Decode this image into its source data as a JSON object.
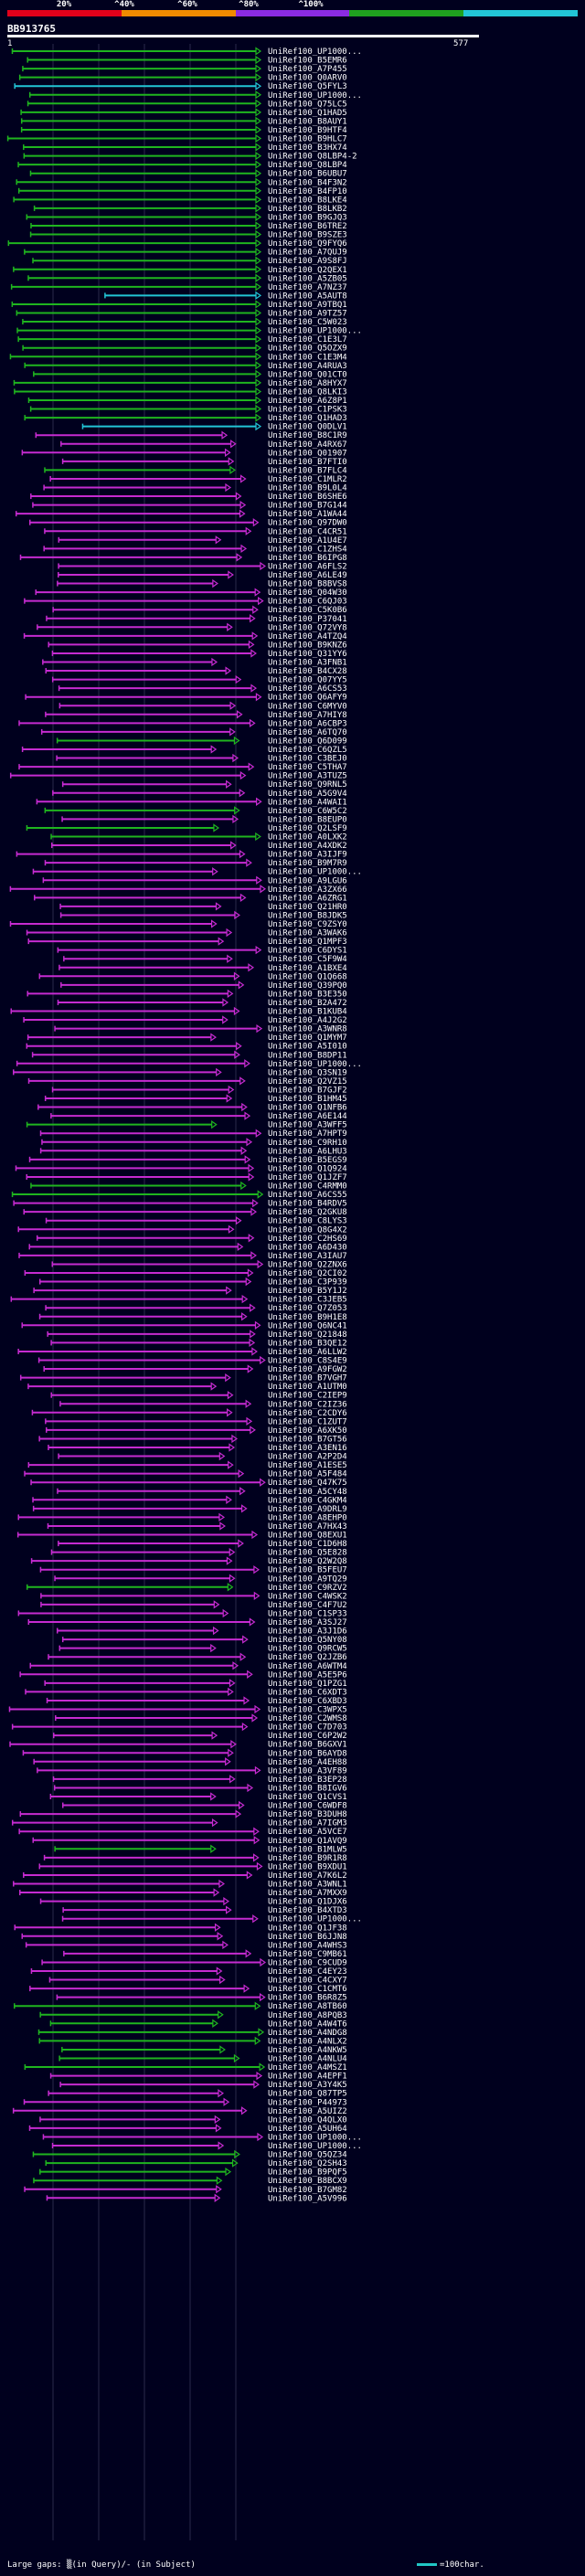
{
  "scale": {
    "labels": [
      "20%",
      "^40%",
      "^60%",
      "^80%",
      "^100%"
    ],
    "colors": [
      "#e2001a",
      "#f08a00",
      "#8a2be2",
      "#1fa11f",
      "#22c5d6"
    ]
  },
  "query": {
    "id": "BB913765",
    "start": "1",
    "end": "577"
  },
  "hits": [
    {
      "label": "UniRef100_UP1000...",
      "color": "green"
    },
    {
      "label": "UniRef100_B5EMR6",
      "color": "green"
    },
    {
      "label": "UniRef100_A7P455",
      "color": "green"
    },
    {
      "label": "UniRef100_Q0ARV0",
      "color": "green"
    },
    {
      "label": "UniRef100_Q5FYL3",
      "color": "cyan"
    },
    {
      "label": "UniRef100_UP1000...",
      "color": "green"
    },
    {
      "label": "UniRef100_Q75LC5",
      "color": "green"
    },
    {
      "label": "UniRef100_Q1HAD5",
      "color": "green"
    },
    {
      "label": "UniRef100_B8AUY1",
      "color": "green"
    },
    {
      "label": "UniRef100_B9HTF4",
      "color": "green"
    },
    {
      "label": "UniRef100_B9HLC7",
      "color": "green"
    },
    {
      "label": "UniRef100_B3HX74",
      "color": "green"
    },
    {
      "label": "UniRef100_Q8LBP4-2",
      "color": "green"
    },
    {
      "label": "UniRef100_Q8LBP4",
      "color": "green"
    },
    {
      "label": "UniRef100_B6UBU7",
      "color": "green"
    },
    {
      "label": "UniRef100_B4F3N2",
      "color": "green"
    },
    {
      "label": "UniRef100_B4FP10",
      "color": "green"
    },
    {
      "label": "UniRef100_B8LKE4",
      "color": "green"
    },
    {
      "label": "UniRef100_B8LKB2",
      "color": "green"
    },
    {
      "label": "UniRef100_B9GJQ3",
      "color": "green"
    },
    {
      "label": "UniRef100_B6TRE2",
      "color": "green"
    },
    {
      "label": "UniRef100_B9SZE3",
      "color": "green"
    },
    {
      "label": "UniRef100_Q9FYQ6",
      "color": "green"
    },
    {
      "label": "UniRef100_A7QUJ9",
      "color": "green"
    },
    {
      "label": "UniRef100_A9S8FJ",
      "color": "green"
    },
    {
      "label": "UniRef100_Q2QEX1",
      "color": "green"
    },
    {
      "label": "UniRef100_A5ZB05",
      "color": "green"
    },
    {
      "label": "UniRef100_A7NZ37",
      "color": "green"
    },
    {
      "label": "UniRef100_A5AUT8",
      "color": "cyan"
    },
    {
      "label": "UniRef100_A9TBQ1",
      "color": "green"
    },
    {
      "label": "UniRef100_A9TZ57",
      "color": "green"
    },
    {
      "label": "UniRef100_C5W023",
      "color": "green"
    },
    {
      "label": "UniRef100_UP1000...",
      "color": "green"
    },
    {
      "label": "UniRef100_C1E3L7",
      "color": "green"
    },
    {
      "label": "UniRef100_Q5OZX9",
      "color": "green"
    },
    {
      "label": "UniRef100_C1E3M4",
      "color": "green"
    },
    {
      "label": "UniRef100_A4RUA3",
      "color": "green"
    },
    {
      "label": "UniRef100_Q01CT0",
      "color": "green"
    },
    {
      "label": "UniRef100_A8HYX7",
      "color": "green"
    },
    {
      "label": "UniRef100_Q8LKI3",
      "color": "green"
    },
    {
      "label": "UniRef100_A6Z8P1",
      "color": "green"
    },
    {
      "label": "UniRef100_C1PSK3",
      "color": "green"
    },
    {
      "label": "UniRef100_Q1HAD3",
      "color": "green"
    },
    {
      "label": "UniRef100_Q0DLV1",
      "color": "cyan"
    },
    {
      "label": "UniRef100_B8C1R9",
      "color": "magenta"
    },
    {
      "label": "UniRef100_A4RX67",
      "color": "magenta"
    },
    {
      "label": "UniRef100_Q01907",
      "color": "magenta"
    },
    {
      "label": "UniRef100_B7FTI0",
      "color": "magenta"
    },
    {
      "label": "UniRef100_B7FLC4",
      "color": "green"
    },
    {
      "label": "UniRef100_C1MLR2",
      "color": "magenta"
    },
    {
      "label": "UniRef100_B9L0L4",
      "color": "magenta"
    },
    {
      "label": "UniRef100_B6SHE6",
      "color": "magenta"
    },
    {
      "label": "UniRef100_B7G144",
      "color": "magenta"
    },
    {
      "label": "UniRef100_A1WA44",
      "color": "magenta"
    },
    {
      "label": "UniRef100_Q97DW0",
      "color": "magenta"
    },
    {
      "label": "UniRef100_C4CR51",
      "color": "magenta"
    },
    {
      "label": "UniRef100_A1U4E7",
      "color": "magenta"
    },
    {
      "label": "UniRef100_C1ZHS4",
      "color": "magenta"
    },
    {
      "label": "UniRef100_B6IPG8",
      "color": "magenta"
    },
    {
      "label": "UniRef100_A6FLS2",
      "color": "magenta"
    },
    {
      "label": "UniRef100_A6LE49",
      "color": "magenta"
    },
    {
      "label": "UniRef100_B8BVS8",
      "color": "magenta"
    },
    {
      "label": "UniRef100_Q04W30",
      "color": "magenta"
    },
    {
      "label": "UniRef100_C6QJ03",
      "color": "magenta"
    },
    {
      "label": "UniRef100_C5K0B6",
      "color": "magenta"
    },
    {
      "label": "UniRef100_P37041",
      "color": "magenta"
    },
    {
      "label": "UniRef100_Q72VY8",
      "color": "magenta"
    },
    {
      "label": "UniRef100_A4TZQ4",
      "color": "magenta"
    },
    {
      "label": "UniRef100_B9KNZ6",
      "color": "magenta"
    },
    {
      "label": "UniRef100_Q31YY6",
      "color": "magenta"
    },
    {
      "label": "UniRef100_A3FNB1",
      "color": "magenta"
    },
    {
      "label": "UniRef100_B4CX28",
      "color": "magenta"
    },
    {
      "label": "UniRef100_Q07YY5",
      "color": "magenta"
    },
    {
      "label": "UniRef100_A6CS53",
      "color": "magenta"
    },
    {
      "label": "UniRef100_Q6AFY9",
      "color": "magenta"
    },
    {
      "label": "UniRef100_C6MYV0",
      "color": "magenta"
    },
    {
      "label": "UniRef100_A7HIY8",
      "color": "magenta"
    },
    {
      "label": "UniRef100_A6CBP3",
      "color": "magenta"
    },
    {
      "label": "UniRef100_A6TQ70",
      "color": "magenta"
    },
    {
      "label": "UniRef100_Q6D099",
      "color": "green"
    },
    {
      "label": "UniRef100_C6QZL5",
      "color": "magenta"
    },
    {
      "label": "UniRef100_C3BEJ0",
      "color": "magenta"
    },
    {
      "label": "UniRef100_C5THA7",
      "color": "magenta"
    },
    {
      "label": "UniRef100_A3TUZ5",
      "color": "magenta"
    },
    {
      "label": "UniRef100_Q9RNL5",
      "color": "magenta"
    },
    {
      "label": "UniRef100_A5G9V4",
      "color": "magenta"
    },
    {
      "label": "UniRef100_A4WAI1",
      "color": "magenta"
    },
    {
      "label": "UniRef100_C6W5C2",
      "color": "green"
    },
    {
      "label": "UniRef100_B8EUP0",
      "color": "magenta"
    },
    {
      "label": "UniRef100_Q2LSF9",
      "color": "green"
    },
    {
      "label": "UniRef100_A0LXK2",
      "color": "green"
    },
    {
      "label": "UniRef100_A4XDK2",
      "color": "magenta"
    },
    {
      "label": "UniRef100_A3IJF9",
      "color": "magenta"
    },
    {
      "label": "UniRef100_B9M7R9",
      "color": "magenta"
    },
    {
      "label": "UniRef100_UP1000...",
      "color": "magenta"
    },
    {
      "label": "UniRef100_A9LGU6",
      "color": "magenta"
    },
    {
      "label": "UniRef100_A3ZX66",
      "color": "magenta"
    },
    {
      "label": "UniRef100_A6ZRG1",
      "color": "magenta"
    },
    {
      "label": "UniRef100_Q21HR0",
      "color": "magenta"
    },
    {
      "label": "UniRef100_B8JDK5",
      "color": "magenta"
    },
    {
      "label": "UniRef100_C9ZSY0",
      "color": "magenta"
    },
    {
      "label": "UniRef100_A3WAK6",
      "color": "magenta"
    },
    {
      "label": "UniRef100_Q1MPF3",
      "color": "magenta"
    },
    {
      "label": "UniRef100_C6DYS1",
      "color": "magenta"
    },
    {
      "label": "UniRef100_C5F9W4",
      "color": "magenta"
    },
    {
      "label": "UniRef100_A1BXE4",
      "color": "magenta"
    },
    {
      "label": "UniRef100_Q1Q668",
      "color": "magenta"
    },
    {
      "label": "UniRef100_Q39PQ0",
      "color": "magenta"
    },
    {
      "label": "UniRef100_B3E350",
      "color": "magenta"
    },
    {
      "label": "UniRef100_B2A472",
      "color": "magenta"
    },
    {
      "label": "UniRef100_B1KUB4",
      "color": "magenta"
    },
    {
      "label": "UniRef100_A4J2G2",
      "color": "magenta"
    },
    {
      "label": "UniRef100_A3WNR8",
      "color": "magenta"
    },
    {
      "label": "UniRef100_Q1MYM7",
      "color": "magenta"
    },
    {
      "label": "UniRef100_A5I010",
      "color": "magenta"
    },
    {
      "label": "UniRef100_B8DP11",
      "color": "magenta"
    },
    {
      "label": "UniRef100_UP1000...",
      "color": "magenta"
    },
    {
      "label": "UniRef100_Q3SN19",
      "color": "magenta"
    },
    {
      "label": "UniRef100_Q2VZ15",
      "color": "magenta"
    },
    {
      "label": "UniRef100_B7GJF2",
      "color": "magenta"
    },
    {
      "label": "UniRef100_B1HM45",
      "color": "magenta"
    },
    {
      "label": "UniRef100_Q1NFB6",
      "color": "magenta"
    },
    {
      "label": "UniRef100_A6E144",
      "color": "magenta"
    },
    {
      "label": "UniRef100_A3WFF5",
      "color": "green"
    },
    {
      "label": "UniRef100_A7HPT9",
      "color": "magenta"
    },
    {
      "label": "UniRef100_C9RH10",
      "color": "magenta"
    },
    {
      "label": "UniRef100_A6LHU3",
      "color": "magenta"
    },
    {
      "label": "UniRef100_B5EGS9",
      "color": "magenta"
    },
    {
      "label": "UniRef100_Q1Q924",
      "color": "magenta"
    },
    {
      "label": "UniRef100_Q1JZF7",
      "color": "magenta"
    },
    {
      "label": "UniRef100_C4RMM0",
      "color": "green"
    },
    {
      "label": "UniRef100_A6CS55",
      "color": "green"
    },
    {
      "label": "UniRef100_B4RDV5",
      "color": "magenta"
    },
    {
      "label": "UniRef100_Q2GKU8",
      "color": "magenta"
    },
    {
      "label": "UniRef100_C8LYS3",
      "color": "magenta"
    },
    {
      "label": "UniRef100_Q8G4X2",
      "color": "magenta"
    },
    {
      "label": "UniRef100_C2HS69",
      "color": "magenta"
    },
    {
      "label": "UniRef100_A6D430",
      "color": "magenta"
    },
    {
      "label": "UniRef100_A3IAU7",
      "color": "magenta"
    },
    {
      "label": "UniRef100_Q2ZNX6",
      "color": "magenta"
    },
    {
      "label": "UniRef100_Q2CI02",
      "color": "magenta"
    },
    {
      "label": "UniRef100_C3P939",
      "color": "magenta"
    },
    {
      "label": "UniRef100_B5Y1J2",
      "color": "magenta"
    },
    {
      "label": "UniRef100_C3JEB5",
      "color": "magenta"
    },
    {
      "label": "UniRef100_Q7Z053",
      "color": "magenta"
    },
    {
      "label": "UniRef100_B9H1E8",
      "color": "magenta"
    },
    {
      "label": "UniRef100_Q6NC41",
      "color": "magenta"
    },
    {
      "label": "UniRef100_Q21848",
      "color": "magenta"
    },
    {
      "label": "UniRef100_B3QE12",
      "color": "magenta"
    },
    {
      "label": "UniRef100_A6LLW2",
      "color": "magenta"
    },
    {
      "label": "UniRef100_C8S4E9",
      "color": "magenta"
    },
    {
      "label": "UniRef100_A9FGW2",
      "color": "magenta"
    },
    {
      "label": "UniRef100_B7VGH7",
      "color": "magenta"
    },
    {
      "label": "UniRef100_A1UTM0",
      "color": "magenta"
    },
    {
      "label": "UniRef100_C2IEP9",
      "color": "magenta"
    },
    {
      "label": "UniRef100_C2IZ36",
      "color": "magenta"
    },
    {
      "label": "UniRef100_C2CDY6",
      "color": "magenta"
    },
    {
      "label": "UniRef100_C1ZUT7",
      "color": "magenta"
    },
    {
      "label": "UniRef100_A6XK50",
      "color": "magenta"
    },
    {
      "label": "UniRef100_B7GT56",
      "color": "magenta"
    },
    {
      "label": "UniRef100_A3EN16",
      "color": "magenta"
    },
    {
      "label": "UniRef100_A2P2D4",
      "color": "magenta"
    },
    {
      "label": "UniRef100_A1ESE5",
      "color": "magenta"
    },
    {
      "label": "UniRef100_A5F484",
      "color": "magenta"
    },
    {
      "label": "UniRef100_Q47K75",
      "color": "magenta"
    },
    {
      "label": "UniRef100_A5CY48",
      "color": "magenta"
    },
    {
      "label": "UniRef100_C4GKM4",
      "color": "magenta"
    },
    {
      "label": "UniRef100_A9DRL9",
      "color": "magenta"
    },
    {
      "label": "UniRef100_A8EHP0",
      "color": "magenta"
    },
    {
      "label": "UniRef100_A7HX43",
      "color": "magenta"
    },
    {
      "label": "UniRef100_Q8EXU1",
      "color": "magenta"
    },
    {
      "label": "UniRef100_C1D6H8",
      "color": "magenta"
    },
    {
      "label": "UniRef100_Q5E828",
      "color": "magenta"
    },
    {
      "label": "UniRef100_Q2W2Q8",
      "color": "magenta"
    },
    {
      "label": "UniRef100_B5FEU7",
      "color": "magenta"
    },
    {
      "label": "UniRef100_A9TQ29",
      "color": "magenta"
    },
    {
      "label": "UniRef100_C9RZV2",
      "color": "green"
    },
    {
      "label": "UniRef100_C4WSK2",
      "color": "magenta"
    },
    {
      "label": "UniRef100_C4F7U2",
      "color": "magenta"
    },
    {
      "label": "UniRef100_C1SP33",
      "color": "magenta"
    },
    {
      "label": "UniRef100_A3SJ27",
      "color": "magenta"
    },
    {
      "label": "UniRef100_A3J1D6",
      "color": "magenta"
    },
    {
      "label": "UniRef100_Q5NY08",
      "color": "magenta"
    },
    {
      "label": "UniRef100_Q9RCW5",
      "color": "magenta"
    },
    {
      "label": "UniRef100_Q2JZB6",
      "color": "magenta"
    },
    {
      "label": "UniRef100_A6WTM4",
      "color": "magenta"
    },
    {
      "label": "UniRef100_A5E5P6",
      "color": "magenta"
    },
    {
      "label": "UniRef100_Q1PZG1",
      "color": "magenta"
    },
    {
      "label": "UniRef100_C6XDT3",
      "color": "magenta"
    },
    {
      "label": "UniRef100_C6XBD3",
      "color": "magenta"
    },
    {
      "label": "UniRef100_C3WPX5",
      "color": "magenta"
    },
    {
      "label": "UniRef100_C2WMS8",
      "color": "magenta"
    },
    {
      "label": "UniRef100_C7D703",
      "color": "magenta"
    },
    {
      "label": "UniRef100_C6P2W2",
      "color": "magenta"
    },
    {
      "label": "UniRef100_B6GXV1",
      "color": "magenta"
    },
    {
      "label": "UniRef100_B6AYD8",
      "color": "magenta"
    },
    {
      "label": "UniRef100_A4EH88",
      "color": "magenta"
    },
    {
      "label": "UniRef100_A3VF89",
      "color": "magenta"
    },
    {
      "label": "UniRef100_B3EP28",
      "color": "magenta"
    },
    {
      "label": "UniRef100_B8IGV6",
      "color": "magenta"
    },
    {
      "label": "UniRef100_Q1CVS1",
      "color": "magenta"
    },
    {
      "label": "UniRef100_C6WDF8",
      "color": "magenta"
    },
    {
      "label": "UniRef100_B3DUH8",
      "color": "magenta"
    },
    {
      "label": "UniRef100_A7IGM3",
      "color": "magenta"
    },
    {
      "label": "UniRef100_A5VCE7",
      "color": "magenta"
    },
    {
      "label": "UniRef100_Q1AVQ9",
      "color": "magenta"
    },
    {
      "label": "UniRef100_B1MLW5",
      "color": "green"
    },
    {
      "label": "UniRef100_B9R1R8",
      "color": "magenta"
    },
    {
      "label": "UniRef100_B9XDU1",
      "color": "magenta"
    },
    {
      "label": "UniRef100_A7K6L2",
      "color": "magenta"
    },
    {
      "label": "UniRef100_A3WNL1",
      "color": "magenta"
    },
    {
      "label": "UniRef100_A7MXX9",
      "color": "magenta"
    },
    {
      "label": "UniRef100_Q1DJX6",
      "color": "magenta"
    },
    {
      "label": "UniRef100_B4XTD3",
      "color": "magenta"
    },
    {
      "label": "UniRef100_UP1000...",
      "color": "magenta"
    },
    {
      "label": "UniRef100_Q1JF38",
      "color": "magenta"
    },
    {
      "label": "UniRef100_B6JJN8",
      "color": "magenta"
    },
    {
      "label": "UniRef100_A4WHS3",
      "color": "magenta"
    },
    {
      "label": "UniRef100_C9MB61",
      "color": "magenta"
    },
    {
      "label": "UniRef100_C9CUD9",
      "color": "magenta"
    },
    {
      "label": "UniRef100_C4EY23",
      "color": "magenta"
    },
    {
      "label": "UniRef100_C4CXY7",
      "color": "magenta"
    },
    {
      "label": "UniRef100_C1CMT6",
      "color": "magenta"
    },
    {
      "label": "UniRef100_B6R8Z5",
      "color": "magenta"
    },
    {
      "label": "UniRef100_A8TB60",
      "color": "green"
    },
    {
      "label": "UniRef100_A8PQB3",
      "color": "green"
    },
    {
      "label": "UniRef100_A4W4T6",
      "color": "green"
    },
    {
      "label": "UniRef100_A4NDG8",
      "color": "green"
    },
    {
      "label": "UniRef100_A4NLX2",
      "color": "green"
    },
    {
      "label": "UniRef100_A4NKW5",
      "color": "green"
    },
    {
      "label": "UniRef100_A4NLU4",
      "color": "green"
    },
    {
      "label": "UniRef100_A4MSZ1",
      "color": "green"
    },
    {
      "label": "UniRef100_A4EPF1",
      "color": "magenta"
    },
    {
      "label": "UniRef100_A3Y4K5",
      "color": "magenta"
    },
    {
      "label": "UniRef100_Q87TP5",
      "color": "magenta"
    },
    {
      "label": "UniRef100_P44973",
      "color": "magenta"
    },
    {
      "label": "UniRef100_A5UIZ2",
      "color": "magenta"
    },
    {
      "label": "UniRef100_Q4QLX0",
      "color": "magenta"
    },
    {
      "label": "UniRef100_A5UH64",
      "color": "magenta"
    },
    {
      "label": "UniRef100_UP1000...",
      "color": "magenta"
    },
    {
      "label": "UniRef100_UP1000...",
      "color": "magenta"
    },
    {
      "label": "UniRef100_Q5QZ34",
      "color": "green"
    },
    {
      "label": "UniRef100_Q2SH43",
      "color": "green"
    },
    {
      "label": "UniRef100_B9PQF5",
      "color": "green"
    },
    {
      "label": "UniRef100_B8BCX9",
      "color": "green"
    },
    {
      "label": "UniRef100_B7GM82",
      "color": "magenta"
    },
    {
      "label": "UniRef100_A5V996",
      "color": "magenta"
    }
  ],
  "palette": {
    "green": "#1fb51f",
    "cyan": "#22c5d6",
    "magenta": "#c62bd1",
    "background": "#00001e",
    "query_line": "#ffffff"
  },
  "footer": {
    "gaps_text": "Large gaps: ▒(in Query)/- (in Subject)",
    "legend_text": "=100char."
  }
}
